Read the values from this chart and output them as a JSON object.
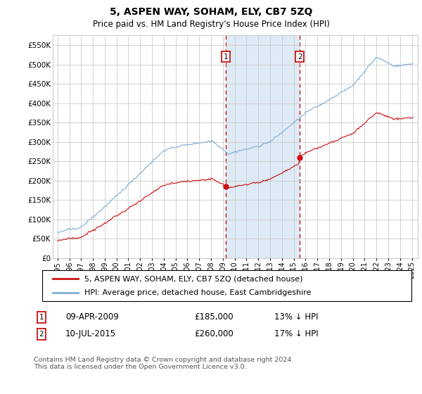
{
  "title": "5, ASPEN WAY, SOHAM, ELY, CB7 5ZQ",
  "subtitle": "Price paid vs. HM Land Registry's House Price Index (HPI)",
  "legend_line1": "5, ASPEN WAY, SOHAM, ELY, CB7 5ZQ (detached house)",
  "legend_line2": "HPI: Average price, detached house, East Cambridgeshire",
  "annotation1": {
    "label": "1",
    "date": "09-APR-2009",
    "price": "£185,000",
    "info": "13% ↓ HPI",
    "x_year": 2009.25
  },
  "annotation2": {
    "label": "2",
    "date": "10-JUL-2015",
    "price": "£260,000",
    "info": "17% ↓ HPI",
    "x_year": 2015.52
  },
  "footer": "Contains HM Land Registry data © Crown copyright and database right 2024.\nThis data is licensed under the Open Government Licence v3.0.",
  "hpi_color": "#7dadd4",
  "price_color": "#cc1111",
  "annotation_box_color": "#cc1111",
  "shaded_region_color": "#deeaf5",
  "background_color": "#ffffff",
  "grid_color": "#cccccc",
  "ylim": [
    0,
    575000
  ],
  "yticks": [
    0,
    50000,
    100000,
    150000,
    200000,
    250000,
    300000,
    350000,
    400000,
    450000,
    500000,
    550000
  ],
  "xlim_start": 1994.6,
  "xlim_end": 2025.5
}
